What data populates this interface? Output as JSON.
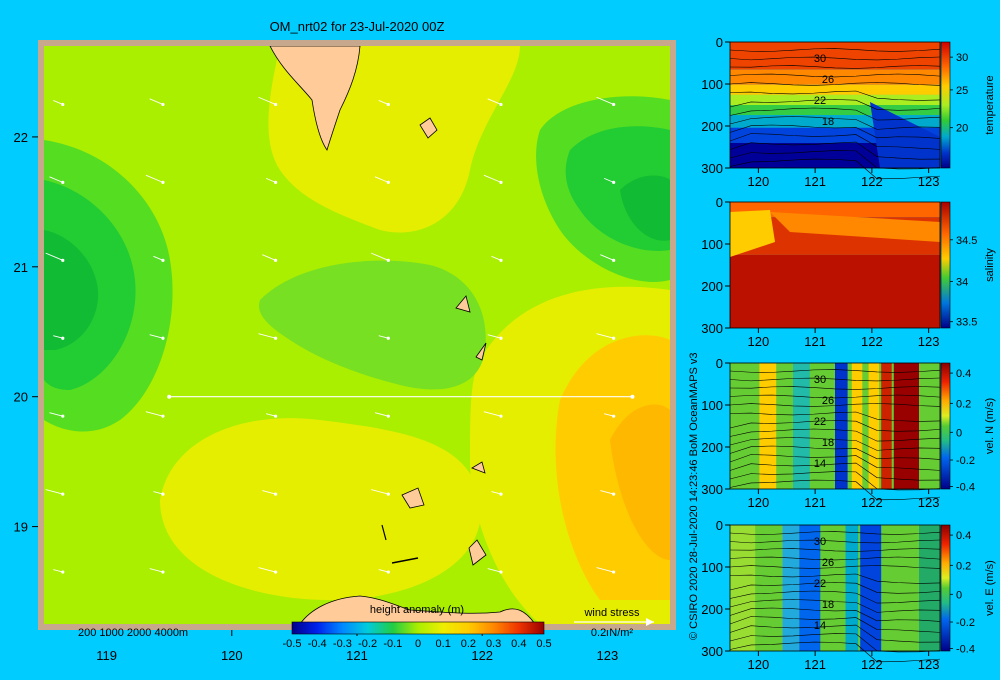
{
  "title": "OM_nrt02 for 23-Jul-2020 00Z",
  "credit": "© CSIRO 2020   28-Jul-2020 14:23:46 BoM OceanMAPS v3",
  "colors": {
    "background": "#00ccff",
    "land": "#ffcc99",
    "shelf": "#c8a88c",
    "wind_arrow": "#ffffff"
  },
  "map": {
    "xlabel_ticks": [
      "119",
      "120",
      "121",
      "122",
      "123"
    ],
    "ylabel_ticks": [
      "22",
      "21",
      "20",
      "19"
    ],
    "xlim": [
      118.5,
      123.5
    ],
    "ylim": [
      18.25,
      22.7
    ],
    "bathymetry_legend": "200  1000  2000  4000m",
    "section_line": {
      "lon_start": 119.5,
      "lon_end": 123.2,
      "lat": 20.0
    },
    "wind_label": "wind stress",
    "wind_scale": "0.2 N/m²",
    "colorbar": {
      "label": "height anomaly (m)",
      "ticks": [
        "-0.5",
        "-0.4",
        "-0.3",
        "-0.2",
        "-0.1",
        "0",
        "0.1",
        "0.2",
        "0.3",
        "0.4",
        "0.5"
      ],
      "range": [
        -0.5,
        0.5
      ]
    }
  },
  "chart_data": [
    {
      "type": "heatmap",
      "title": "",
      "variable": "height anomaly (m)",
      "x_range": [
        118.5,
        123.5
      ],
      "y_range": [
        18.25,
        22.7
      ],
      "features": [
        {
          "name": "low",
          "lon": 118.7,
          "lat": 21.0,
          "value": -0.15
        },
        {
          "name": "low",
          "lon": 123.3,
          "lat": 21.6,
          "value": -0.1
        },
        {
          "name": "high",
          "lon": 123.1,
          "lat": 19.8,
          "value": 0.2
        },
        {
          "name": "high",
          "lon": 120.4,
          "lat": 19.2,
          "value": 0.12
        }
      ]
    },
    {
      "type": "heatmap",
      "panel": "temperature",
      "xticks": [
        "120",
        "121",
        "122",
        "123"
      ],
      "yticks": [
        "0",
        "100",
        "200",
        "300"
      ],
      "colorbar_ticks": [
        "30",
        "25",
        "20"
      ],
      "colorbar_label": "temperature",
      "contour_labels": [
        "30",
        "26",
        "22",
        "18"
      ]
    },
    {
      "type": "heatmap",
      "panel": "salinity",
      "xticks": [
        "120",
        "121",
        "122",
        "123"
      ],
      "yticks": [
        "0",
        "100",
        "200",
        "300"
      ],
      "colorbar_ticks": [
        "34.5",
        "34",
        "33.5"
      ],
      "colorbar_label": "salinity"
    },
    {
      "type": "heatmap",
      "panel": "vel. N (m/s)",
      "xticks": [
        "120",
        "121",
        "122",
        "123"
      ],
      "yticks": [
        "0",
        "100",
        "200",
        "300"
      ],
      "colorbar_ticks": [
        "0.4",
        "0.2",
        "0",
        "-0.2",
        "-0.4"
      ],
      "colorbar_label": "vel. N (m/s)",
      "contour_labels": [
        "30",
        "26",
        "22",
        "18",
        "14"
      ]
    },
    {
      "type": "heatmap",
      "panel": "vel. E (m/s)",
      "xticks": [
        "120",
        "121",
        "122",
        "123"
      ],
      "yticks": [
        "0",
        "100",
        "200",
        "300"
      ],
      "colorbar_ticks": [
        "0.4",
        "0.2",
        "0",
        "-0.2",
        "-0.4"
      ],
      "colorbar_label": "vel. E (m/s)",
      "contour_labels": [
        "30",
        "26",
        "22",
        "18",
        "14"
      ]
    }
  ]
}
